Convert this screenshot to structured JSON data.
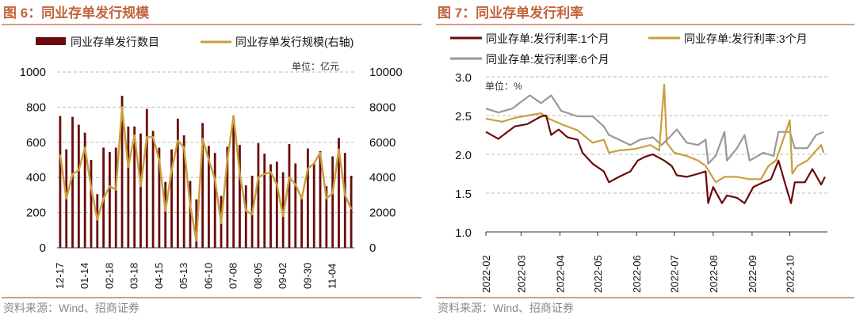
{
  "colors": {
    "title": "#c0643a",
    "bar": "#6b0a0a",
    "gold": "#c9a03c",
    "gray": "#999999",
    "rule": "#c87a5a"
  },
  "chart_data": [
    {
      "type": "bar",
      "title": "图 6：同业存单发行规模",
      "unit": "单位：亿元",
      "source": "资料来源：Wind、招商证券",
      "categories_labels": [
        "12-17",
        "01-14",
        "02-18",
        "03-18",
        "04-15",
        "05-13",
        "06-10",
        "07-08",
        "08-05",
        "09-02",
        "09-30",
        "11-04"
      ],
      "label_every": 4,
      "left_ylim": [
        0,
        1000
      ],
      "left_yticks": [
        "0",
        "200",
        "400",
        "600",
        "800",
        "1000"
      ],
      "right_ylim": [
        0,
        10000
      ],
      "right_yticks": [
        "0",
        "2000",
        "4000",
        "6000",
        "8000",
        "10000"
      ],
      "series": [
        {
          "name": "同业存单发行数目",
          "type": "bar",
          "axis": "left",
          "values": [
            750,
            560,
            745,
            700,
            655,
            500,
            305,
            570,
            545,
            570,
            865,
            690,
            690,
            650,
            790,
            665,
            570,
            375,
            560,
            735,
            640,
            380,
            275,
            710,
            580,
            540,
            295,
            575,
            750,
            585,
            355,
            410,
            595,
            535,
            475,
            490,
            430,
            590,
            480,
            290,
            565,
            480,
            550,
            350,
            520,
            625,
            540,
            410
          ]
        },
        {
          "name": "同业存单发行规模(右轴)",
          "type": "line",
          "axis": "right",
          "values": [
            5300,
            2800,
            4200,
            4400,
            5700,
            3400,
            1600,
            2800,
            3500,
            3300,
            8000,
            4600,
            6400,
            3500,
            6300,
            6300,
            5000,
            2100,
            4400,
            6100,
            5700,
            2400,
            400,
            6200,
            5000,
            3900,
            1400,
            5000,
            7500,
            4200,
            2100,
            1900,
            4000,
            4200,
            4300,
            3600,
            1800,
            4000,
            3600,
            2800,
            4500,
            4800,
            5400,
            2800,
            3100,
            5600,
            3000,
            2200
          ]
        }
      ]
    },
    {
      "type": "line",
      "title": "图 7：同业存单发行利率",
      "unit": "单位：%",
      "source": "资料来源：Wind、招商证券",
      "x_unit": "days since 2022-02-01",
      "xlim": [
        0,
        272
      ],
      "xticks": [
        {
          "day": 0,
          "label": "2022-02"
        },
        {
          "day": 28,
          "label": "2022-03"
        },
        {
          "day": 59,
          "label": "2022-04"
        },
        {
          "day": 89,
          "label": "2022-05"
        },
        {
          "day": 120,
          "label": "2022-06"
        },
        {
          "day": 150,
          "label": "2022-07"
        },
        {
          "day": 181,
          "label": "2022-08"
        },
        {
          "day": 212,
          "label": "2022-09"
        },
        {
          "day": 242,
          "label": "2022-10"
        }
      ],
      "ylim": [
        1.0,
        3.0
      ],
      "yticks": [
        "1.0",
        "1.5",
        "2.0",
        "2.5",
        "3.0"
      ],
      "series": [
        {
          "name": "同业存单:发行利率:1个月",
          "color": "#6b0a0a",
          "x": [
            0,
            10,
            23,
            33,
            44,
            48,
            52,
            58,
            65,
            73,
            77,
            85,
            94,
            98,
            106,
            115,
            121,
            127,
            133,
            142,
            148,
            152,
            160,
            169,
            175,
            177,
            181,
            188,
            192,
            200,
            206,
            213,
            221,
            227,
            233,
            238,
            243,
            246,
            254,
            260,
            267,
            270
          ],
          "y": [
            2.29,
            2.2,
            2.36,
            2.39,
            2.49,
            2.5,
            2.25,
            2.32,
            2.22,
            2.19,
            2.02,
            1.88,
            1.78,
            1.64,
            1.71,
            1.78,
            1.92,
            1.97,
            2.0,
            1.92,
            1.85,
            1.73,
            1.71,
            1.75,
            1.78,
            1.37,
            1.58,
            1.37,
            1.47,
            1.44,
            1.37,
            1.58,
            1.64,
            1.68,
            1.92,
            1.64,
            1.37,
            1.64,
            1.64,
            1.81,
            1.61,
            1.71
          ]
        },
        {
          "name": "同业存单:发行利率:3个月",
          "color": "#c9a03c",
          "x": [
            0,
            13,
            23,
            33,
            44,
            50,
            60,
            73,
            85,
            94,
            98,
            106,
            119,
            131,
            138,
            142,
            144,
            150,
            160,
            169,
            175,
            183,
            190,
            200,
            210,
            219,
            225,
            231,
            242,
            244,
            248,
            256,
            263,
            267,
            269
          ],
          "y": [
            2.46,
            2.42,
            2.47,
            2.5,
            2.53,
            2.46,
            2.39,
            2.31,
            2.15,
            2.19,
            2.02,
            2.05,
            2.07,
            2.12,
            2.05,
            2.9,
            2.15,
            2.02,
            1.98,
            1.92,
            1.85,
            1.64,
            1.71,
            1.71,
            1.68,
            1.68,
            1.85,
            1.92,
            2.44,
            1.75,
            1.85,
            1.92,
            2.05,
            2.12,
            2.02
          ]
        },
        {
          "name": "同业存单:发行利率:6个月",
          "color": "#999999",
          "x": [
            0,
            10,
            21,
            29,
            35,
            44,
            52,
            60,
            73,
            85,
            94,
            98,
            106,
            115,
            123,
            133,
            140,
            148,
            152,
            160,
            169,
            175,
            177,
            183,
            190,
            192,
            200,
            206,
            210,
            221,
            229,
            233,
            242,
            246,
            256,
            263,
            269
          ],
          "y": [
            2.59,
            2.54,
            2.59,
            2.69,
            2.76,
            2.66,
            2.76,
            2.56,
            2.49,
            2.49,
            2.36,
            2.25,
            2.19,
            2.12,
            2.19,
            2.22,
            2.12,
            2.25,
            2.32,
            2.15,
            2.12,
            2.19,
            1.88,
            1.98,
            2.29,
            1.92,
            2.08,
            2.25,
            1.92,
            2.02,
            1.98,
            2.29,
            2.29,
            2.08,
            2.08,
            2.25,
            2.29
          ]
        }
      ]
    }
  ]
}
